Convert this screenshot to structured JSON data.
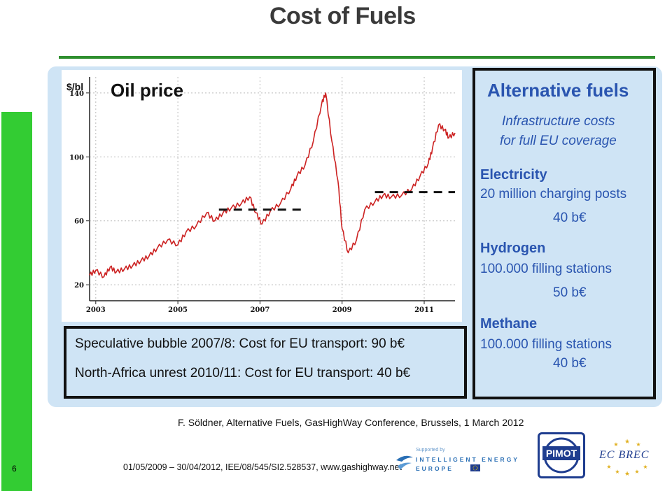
{
  "page_number": "6",
  "title": "Cost of Fuels",
  "chart_data": {
    "type": "line",
    "title": "Oil price",
    "y_unit": "$/bl",
    "ylim": [
      10,
      150
    ],
    "xlim": [
      2002.85,
      2011.75
    ],
    "x_ticks": [
      "2003",
      "2005",
      "2007",
      "2009",
      "2011"
    ],
    "y_ticks": [
      "140",
      "100",
      "60",
      "20"
    ],
    "grid": true,
    "line_color": "#cc2222",
    "series": [
      {
        "x": [
          2002.85,
          2003.0,
          2003.2,
          2003.35,
          2003.5,
          2003.7,
          2003.9,
          2004.1,
          2004.3,
          2004.5,
          2004.75,
          2005.0,
          2005.2,
          2005.45,
          2005.7,
          2005.9,
          2006.1,
          2006.3,
          2006.55,
          2006.75,
          2006.9,
          2007.05,
          2007.25,
          2007.5,
          2007.75,
          2007.9,
          2008.1,
          2008.3,
          2008.5,
          2008.6,
          2008.75,
          2008.9,
          2009.0,
          2009.15,
          2009.35,
          2009.55,
          2009.8,
          2010.0,
          2010.2,
          2010.45,
          2010.7,
          2010.9,
          2011.1,
          2011.2,
          2011.35,
          2011.5,
          2011.6,
          2011.75
        ],
        "values": [
          26,
          29,
          25,
          31,
          28,
          30,
          32,
          35,
          38,
          43,
          48,
          45,
          53,
          57,
          65,
          60,
          65,
          68,
          71,
          75,
          65,
          58,
          66,
          71,
          80,
          88,
          95,
          110,
          133,
          140,
          110,
          85,
          55,
          40,
          48,
          67,
          72,
          76,
          75,
          76,
          80,
          88,
          96,
          105,
          120,
          117,
          112,
          115
        ]
      }
    ],
    "annotations": [
      {
        "type": "dashed-level",
        "x": [
          2006.0,
          2008.0
        ],
        "y": 67
      },
      {
        "type": "dashed-level",
        "x": [
          2009.8,
          2011.75
        ],
        "y": 78
      }
    ]
  },
  "bubble_box": {
    "line1": "Speculative bubble    2007/8: Cost for EU transport: 90 b€",
    "line2": "North-Africa unrest 2010/11: Cost for EU transport: 40 b€"
  },
  "alternative": {
    "heading": "Alternative fuels",
    "sub1": "Infrastructure costs",
    "sub2": "for full EU coverage",
    "fuels": [
      {
        "name": "Electricity",
        "desc": "20 million charging posts",
        "cost": "40 b€"
      },
      {
        "name": "Hydrogen",
        "desc": "100.000 filling stations",
        "cost": "50 b€"
      },
      {
        "name": "Methane",
        "desc": "100.000 filling stations",
        "cost": "40 b€"
      }
    ]
  },
  "citation": "F. Söldner, Alternative Fuels, GasHighWay Conference, Brussels, 1 March 2012",
  "footer": "01/05/2009 – 30/04/2012, IEE/08/545/SI2.528537, www.gashighway.net",
  "logos": {
    "iee_supported": "Supported by",
    "iee_line1": "INTELLIGENT ENERGY",
    "iee_line2": "EUROPE",
    "pimot": "PIMOT",
    "ecbrec": "EC BREC"
  }
}
